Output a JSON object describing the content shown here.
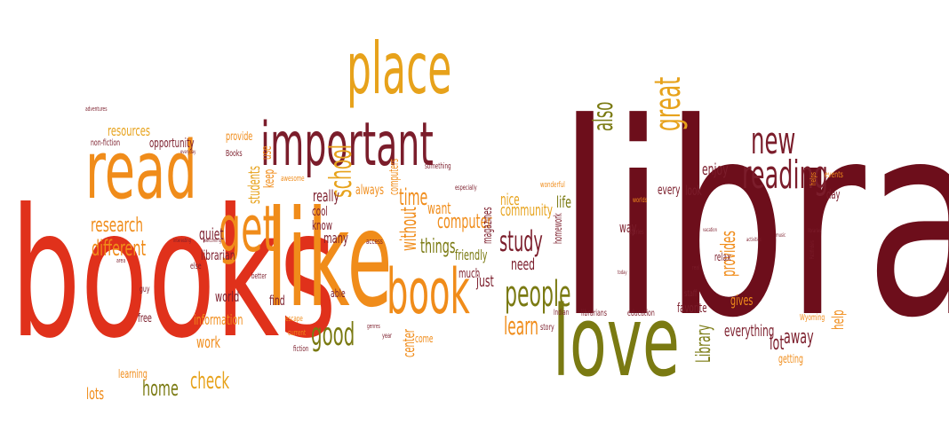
{
  "palette": {
    "dark-red": "#6d0e1b",
    "red": "#e0311b",
    "orange": "#f08c1a",
    "amber": "#e7a21b",
    "olive": "#7a7a12",
    "maroon": "#7b1d2b"
  },
  "words": [
    {
      "text": "library",
      "color": "dark-red"
    },
    {
      "text": "books",
      "color": "red"
    },
    {
      "text": "like",
      "color": "orange"
    },
    {
      "text": "love",
      "color": "olive"
    },
    {
      "text": "read",
      "color": "orange"
    },
    {
      "text": "place",
      "color": "amber"
    },
    {
      "text": "important",
      "color": "maroon"
    },
    {
      "text": "get",
      "color": "orange"
    },
    {
      "text": "book",
      "color": "orange"
    },
    {
      "text": "reading",
      "color": "maroon"
    },
    {
      "text": "new",
      "color": "maroon"
    },
    {
      "text": "great",
      "color": "amber"
    },
    {
      "text": "people",
      "color": "olive"
    },
    {
      "text": "learn",
      "color": "orange"
    },
    {
      "text": "good",
      "color": "olive"
    },
    {
      "text": "school",
      "color": "amber"
    },
    {
      "text": "also",
      "color": "olive"
    },
    {
      "text": "study",
      "color": "maroon"
    },
    {
      "text": "check",
      "color": "amber"
    },
    {
      "text": "home",
      "color": "olive"
    },
    {
      "text": "time",
      "color": "orange"
    },
    {
      "text": "research",
      "color": "orange"
    },
    {
      "text": "different",
      "color": "orange"
    },
    {
      "text": "without",
      "color": "orange"
    },
    {
      "text": "computer",
      "color": "orange"
    },
    {
      "text": "things",
      "color": "olive"
    },
    {
      "text": "enjoy",
      "color": "maroon"
    },
    {
      "text": "work",
      "color": "orange"
    },
    {
      "text": "help",
      "color": "orange"
    },
    {
      "text": "Library",
      "color": "olive"
    },
    {
      "text": "provides",
      "color": "orange"
    },
    {
      "text": "lot",
      "color": "maroon"
    },
    {
      "text": "away",
      "color": "maroon"
    },
    {
      "text": "everything",
      "color": "maroon"
    },
    {
      "text": "gives",
      "color": "orange"
    },
    {
      "text": "favorite",
      "color": "maroon"
    },
    {
      "text": "staff",
      "color": "maroon"
    },
    {
      "text": "community",
      "color": "amber"
    },
    {
      "text": "nice",
      "color": "amber"
    },
    {
      "text": "want",
      "color": "orange"
    },
    {
      "text": "really",
      "color": "maroon"
    },
    {
      "text": "always",
      "color": "orange"
    },
    {
      "text": "know",
      "color": "maroon"
    },
    {
      "text": "cool",
      "color": "maroon"
    },
    {
      "text": "many",
      "color": "maroon"
    },
    {
      "text": "quiet",
      "color": "maroon"
    },
    {
      "text": "librarian",
      "color": "maroon"
    },
    {
      "text": "world",
      "color": "maroon"
    },
    {
      "text": "information",
      "color": "orange"
    },
    {
      "text": "resources",
      "color": "amber"
    },
    {
      "text": "opportunity",
      "color": "maroon"
    },
    {
      "text": "provide",
      "color": "orange"
    },
    {
      "text": "students",
      "color": "amber"
    },
    {
      "text": "keep",
      "color": "orange"
    },
    {
      "text": "use",
      "color": "orange"
    },
    {
      "text": "free",
      "color": "maroon"
    },
    {
      "text": "lots",
      "color": "orange"
    },
    {
      "text": "learning",
      "color": "orange"
    },
    {
      "text": "find",
      "color": "maroon"
    },
    {
      "text": "able",
      "color": "maroon"
    },
    {
      "text": "need",
      "color": "maroon"
    },
    {
      "text": "just",
      "color": "maroon"
    },
    {
      "text": "much",
      "color": "maroon"
    },
    {
      "text": "friendly",
      "color": "olive"
    },
    {
      "text": "center",
      "color": "orange"
    },
    {
      "text": "come",
      "color": "orange"
    },
    {
      "text": "magazines",
      "color": "maroon"
    },
    {
      "text": "computers",
      "color": "orange"
    },
    {
      "text": "life",
      "color": "olive"
    },
    {
      "text": "homework",
      "color": "maroon"
    },
    {
      "text": "story",
      "color": "maroon"
    },
    {
      "text": "librarians",
      "color": "maroon"
    },
    {
      "text": "education",
      "color": "maroon"
    },
    {
      "text": "Indian",
      "color": "maroon"
    },
    {
      "text": "every",
      "color": "maroon"
    },
    {
      "text": "look",
      "color": "maroon"
    },
    {
      "text": "way",
      "color": "maroon"
    },
    {
      "text": "relax",
      "color": "maroon"
    },
    {
      "text": "getting",
      "color": "orange"
    },
    {
      "text": "day",
      "color": "maroon"
    },
    {
      "text": "events",
      "color": "orange"
    },
    {
      "text": "helps",
      "color": "orange"
    },
    {
      "text": "stories",
      "color": "maroon"
    },
    {
      "text": "better",
      "color": "maroon"
    },
    {
      "text": "access",
      "color": "maroon"
    },
    {
      "text": "Books",
      "color": "maroon"
    },
    {
      "text": "non-fiction",
      "color": "maroon"
    },
    {
      "text": "fiction",
      "color": "maroon"
    },
    {
      "text": "current",
      "color": "orange"
    },
    {
      "text": "escape",
      "color": "orange"
    },
    {
      "text": "year",
      "color": "maroon"
    },
    {
      "text": "genres",
      "color": "maroon"
    },
    {
      "text": "something",
      "color": "maroon"
    },
    {
      "text": "especially",
      "color": "maroon"
    },
    {
      "text": "wonderful",
      "color": "orange"
    },
    {
      "text": "awesome",
      "color": "orange"
    },
    {
      "text": "else",
      "color": "maroon"
    },
    {
      "text": "guy",
      "color": "maroon"
    },
    {
      "text": "area",
      "color": "maroon"
    },
    {
      "text": "adventures",
      "color": "maroon"
    },
    {
      "text": "everyday",
      "color": "maroon"
    },
    {
      "text": "interesting",
      "color": "maroon"
    },
    {
      "text": "welcoming",
      "color": "maroon"
    },
    {
      "text": "worlds",
      "color": "orange"
    },
    {
      "text": "vacation",
      "color": "maroon"
    },
    {
      "text": "libraries",
      "color": "maroon"
    },
    {
      "text": "activities",
      "color": "maroon"
    },
    {
      "text": "music",
      "color": "maroon"
    },
    {
      "text": "today",
      "color": "maroon"
    },
    {
      "text": "real",
      "color": "maroon"
    },
    {
      "text": "Pathfinders",
      "color": "maroon"
    },
    {
      "text": "Wyoming",
      "color": "orange"
    }
  ]
}
